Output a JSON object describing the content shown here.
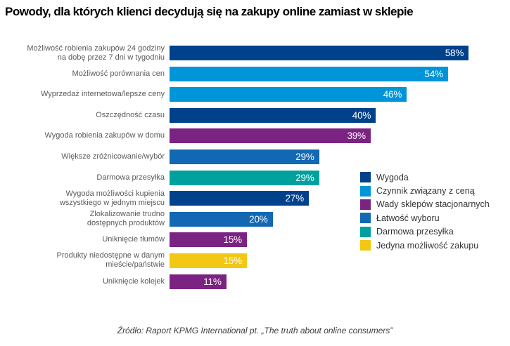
{
  "title": "Powody, dla których klienci decydują się na zakupy online zamiast w sklepie",
  "source": "Źródło: Raport KPMG International pt. „The truth about online consumers”",
  "chart_data": {
    "type": "bar",
    "orientation": "horizontal",
    "unit": "%",
    "xlim": [
      0,
      60
    ],
    "grid": false,
    "legend_position": "bottom-right",
    "group_colors": {
      "Wygoda": "#00418C",
      "Czynnik związany z ceną": "#0095D8",
      "Wady sklepów stacjonarnych": "#7B2382",
      "Łatwość wyboru": "#1268B3",
      "Darmowa przesyłka": "#00A19D",
      "Jedyna możliwość zakupu": "#F2C814"
    },
    "legend": [
      "Wygoda",
      "Czynnik związany z ceną",
      "Wady sklepów stacjonarnych",
      "Łatwość wyboru",
      "Darmowa przesyłka",
      "Jedyna możliwość zakupu"
    ],
    "bars": [
      {
        "label_lines": [
          "Możliwość robienia zakupów 24 godziny",
          "na dobę przez 7 dni w tygodniu"
        ],
        "value": 58,
        "value_label": "58%",
        "group": "Wygoda"
      },
      {
        "label_lines": [
          "Możliwość porównania cen"
        ],
        "value": 54,
        "value_label": "54%",
        "group": "Czynnik związany z ceną"
      },
      {
        "label_lines": [
          "Wyprzedaż internetowa/lepsze ceny"
        ],
        "value": 46,
        "value_label": "46%",
        "group": "Czynnik związany z ceną"
      },
      {
        "label_lines": [
          "Oszczędność czasu"
        ],
        "value": 40,
        "value_label": "40%",
        "group": "Wygoda"
      },
      {
        "label_lines": [
          "Wygoda robienia zakupów w domu"
        ],
        "value": 39,
        "value_label": "39%",
        "group": "Wady sklepów stacjonarnych"
      },
      {
        "label_lines": [
          "Większe zróżnicowanie/wybór"
        ],
        "value": 29,
        "value_label": "29%",
        "group": "Łatwość wyboru"
      },
      {
        "label_lines": [
          "Darmowa przesyłka"
        ],
        "value": 29,
        "value_label": "29%",
        "group": "Darmowa przesyłka"
      },
      {
        "label_lines": [
          "Wygoda możliwości kupienia",
          "wszystkiego w jednym miejscu"
        ],
        "value": 27,
        "value_label": "27%",
        "group": "Wygoda"
      },
      {
        "label_lines": [
          "Zlokalizowanie trudno",
          "dostępnych produktów"
        ],
        "value": 20,
        "value_label": "20%",
        "group": "Łatwość wyboru"
      },
      {
        "label_lines": [
          "Uniknięcie tłumów"
        ],
        "value": 15,
        "value_label": "15%",
        "group": "Wady sklepów stacjonarnych"
      },
      {
        "label_lines": [
          "Produkty niedostępne w danym",
          "mieście/państwie"
        ],
        "value": 15,
        "value_label": "15%",
        "group": "Jedyna możliwość zakupu"
      },
      {
        "label_lines": [
          "Uniknięcie kolejek"
        ],
        "value": 11,
        "value_label": "11%",
        "group": "Wady sklepów stacjonarnych"
      }
    ]
  }
}
